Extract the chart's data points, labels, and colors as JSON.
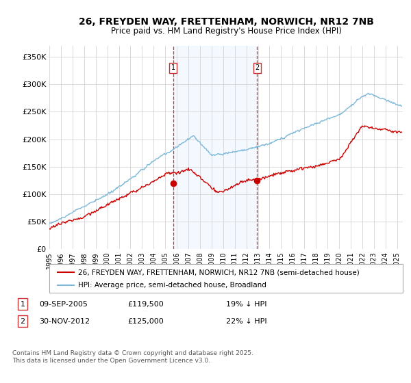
{
  "title": "26, FREYDEN WAY, FRETTENHAM, NORWICH, NR12 7NB",
  "subtitle": "Price paid vs. HM Land Registry's House Price Index (HPI)",
  "ylabel_ticks": [
    "£0",
    "£50K",
    "£100K",
    "£150K",
    "£200K",
    "£250K",
    "£300K",
    "£350K"
  ],
  "ytick_values": [
    0,
    50000,
    100000,
    150000,
    200000,
    250000,
    300000,
    350000
  ],
  "ylim": [
    0,
    370000
  ],
  "xlim_start": 1995.0,
  "xlim_end": 2025.5,
  "hpi_color": "#7ab8d9",
  "price_color": "#cc0000",
  "vline_color": "#cc3333",
  "shade_color": "#ddeeff",
  "marker1_date": 2005.69,
  "marker2_date": 2012.92,
  "marker1_price": 119500,
  "marker2_price": 125000,
  "legend_label1": "26, FREYDEN WAY, FRETTENHAM, NORWICH, NR12 7NB (semi-detached house)",
  "legend_label2": "HPI: Average price, semi-detached house, Broadland",
  "footer": "Contains HM Land Registry data © Crown copyright and database right 2025.\nThis data is licensed under the Open Government Licence v3.0.",
  "xtick_years": [
    1995,
    1996,
    1997,
    1998,
    1999,
    2000,
    2001,
    2002,
    2003,
    2004,
    2005,
    2006,
    2007,
    2008,
    2009,
    2010,
    2011,
    2012,
    2013,
    2014,
    2015,
    2016,
    2017,
    2018,
    2019,
    2020,
    2021,
    2022,
    2023,
    2024,
    2025
  ],
  "table_row1_num": "1",
  "table_row1_date": "09-SEP-2005",
  "table_row1_price": "£119,500",
  "table_row1_hpi": "19% ↓ HPI",
  "table_row2_num": "2",
  "table_row2_date": "30-NOV-2012",
  "table_row2_price": "£125,000",
  "table_row2_hpi": "22% ↓ HPI"
}
